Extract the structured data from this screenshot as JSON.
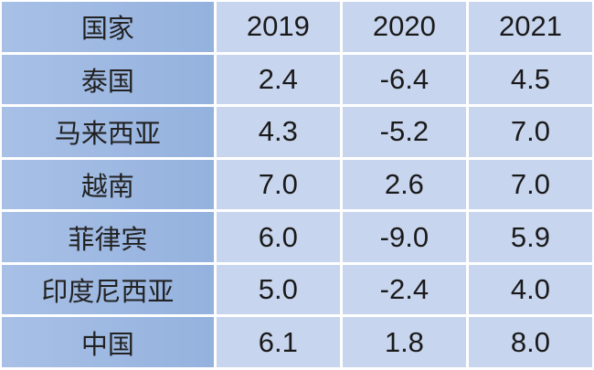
{
  "header": {
    "country": "国家",
    "years": [
      "2019",
      "2020",
      "2021"
    ]
  },
  "rows": [
    {
      "country": "泰国",
      "values": [
        "2.4",
        "-6.4",
        "4.5"
      ]
    },
    {
      "country": "马来西亚",
      "values": [
        "4.3",
        "-5.2",
        "7.0"
      ]
    },
    {
      "country": "越南",
      "values": [
        "7.0",
        "2.6",
        "7.0"
      ]
    },
    {
      "country": "菲律宾",
      "values": [
        "6.0",
        "-9.0",
        "5.9"
      ]
    },
    {
      "country": "印度尼西亚",
      "values": [
        "5.0",
        "-2.4",
        "4.0"
      ]
    },
    {
      "country": "中国",
      "values": [
        "6.1",
        "1.8",
        "8.0"
      ]
    }
  ]
}
